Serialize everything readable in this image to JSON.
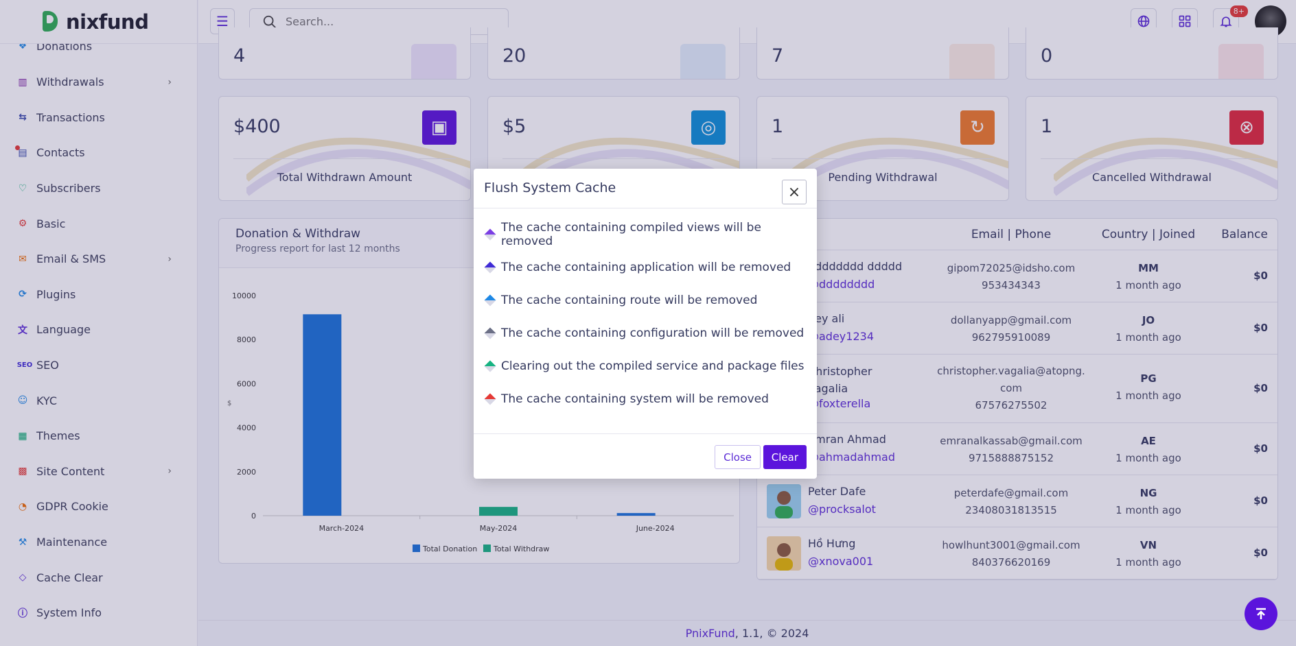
{
  "brand": {
    "name": "nixfund"
  },
  "sidebar": {
    "items": [
      {
        "label": "Donations",
        "icon": "donation-icon",
        "color": "#1e88e5"
      },
      {
        "label": "Withdrawals",
        "icon": "withdraw-icon",
        "color": "#7b1fa2",
        "arrow": true
      },
      {
        "label": "Transactions",
        "icon": "transactions-icon",
        "color": "#3949ab"
      },
      {
        "label": "Contacts",
        "icon": "contacts-icon",
        "color": "#3949ab",
        "dot": true
      },
      {
        "label": "Subscribers",
        "icon": "subscribers-icon",
        "color": "#00a86b"
      },
      {
        "label": "Basic",
        "icon": "gear-icon",
        "color": "#e53935"
      },
      {
        "label": "Email & SMS",
        "icon": "mail-icon",
        "color": "#ef6c00",
        "arrow": true
      },
      {
        "label": "Plugins",
        "icon": "plugin-icon",
        "color": "#1e88e5"
      },
      {
        "label": "Language",
        "icon": "language-icon",
        "color": "#5b2bd6"
      },
      {
        "label": "SEO",
        "icon": "seo-icon",
        "color": "#3f2bd6"
      },
      {
        "label": "KYC",
        "icon": "user-icon",
        "color": "#1e88e5"
      },
      {
        "label": "Themes",
        "icon": "themes-icon",
        "color": "#00a86b"
      },
      {
        "label": "Site Content",
        "icon": "grid-icon",
        "color": "#e53935",
        "arrow": true
      },
      {
        "label": "GDPR Cookie",
        "icon": "cookie-icon",
        "color": "#ef6c00"
      },
      {
        "label": "Maintenance",
        "icon": "wrench-icon",
        "color": "#1e88e5"
      },
      {
        "label": "Cache Clear",
        "icon": "eraser-icon",
        "color": "#5b2bd6"
      },
      {
        "label": "System Info",
        "icon": "info-icon",
        "color": "#5b2bd6"
      }
    ]
  },
  "header": {
    "search_placeholder": "Search...",
    "notification_badge": "8+"
  },
  "stats_top": [
    {
      "value": "4",
      "color": "#ede6fb"
    },
    {
      "value": "20",
      "color": "#e3effc"
    },
    {
      "value": "7",
      "color": "#fdeee4"
    },
    {
      "value": "0",
      "color": "#fde7ea"
    }
  ],
  "stats": [
    {
      "value": "$400",
      "label": "Total Withdrawn Amount",
      "icon": "money-icon",
      "color": "#5b14dc"
    },
    {
      "value": "$5",
      "label": "",
      "icon": "coins-icon",
      "color": "#0c8fd8"
    },
    {
      "value": "1",
      "label": "Pending Withdrawal",
      "icon": "pending-icon",
      "color": "#f07a28"
    },
    {
      "value": "1",
      "label": "Cancelled Withdrawal",
      "icon": "cancel-icon",
      "color": "#e0283c"
    }
  ],
  "chart": {
    "title": "Donation & Withdraw",
    "subtitle": "Progress report for last 12 months"
  },
  "chart_data": {
    "type": "bar",
    "categories": [
      "March-2024",
      "May-2024",
      "June-2024"
    ],
    "series": [
      {
        "name": "Total Donation",
        "color": "#1a73d9",
        "values": [
          9150,
          0,
          120
        ]
      },
      {
        "name": "Total Withdraw",
        "color": "#17b382",
        "values": [
          0,
          400,
          0
        ]
      }
    ],
    "ylabel": "$",
    "yticks": [
      0,
      2000,
      4000,
      6000,
      8000,
      10000
    ],
    "ylim": [
      0,
      10000
    ],
    "legend": "bottom"
  },
  "table": {
    "headers": {
      "email": "Email | Phone",
      "country": "Country | Joined",
      "balance": "Balance"
    },
    "rows": [
      {
        "name": "dddddddd ddddd",
        "handle": "@dddddddd",
        "email": "gipom72025@idsho.com",
        "phone": "953434343",
        "country": "MM",
        "joined": "1 month ago",
        "balance": "$0"
      },
      {
        "name": "dey ali",
        "handle": "@adey1234",
        "email": "dollanyapp@gmail.com",
        "phone": "962795910089",
        "country": "JO",
        "joined": "1 month ago",
        "balance": "$0"
      },
      {
        "name": "Christopher Vagalia",
        "handle": "@foxterella",
        "email": "christopher.vagalia@atopng.com",
        "phone": "67576275502",
        "country": "PG",
        "joined": "1 month ago",
        "balance": "$0"
      },
      {
        "name": "Emran Ahmad",
        "handle": "@ahmadahmad",
        "email": "emranalkassab@gmail.com",
        "phone": "9715888875152",
        "country": "AE",
        "joined": "1 month ago",
        "balance": "$0"
      },
      {
        "name": "Peter Dafe",
        "handle": "@procksalot",
        "email": "peterdafe@gmail.com",
        "phone": "23408031813515",
        "country": "NG",
        "joined": "1 month ago",
        "balance": "$0"
      },
      {
        "name": "Hồ Hưng",
        "handle": "@xnova001",
        "email": "howlhunt3001@gmail.com",
        "phone": "840376620169",
        "country": "VN",
        "joined": "1 month ago",
        "balance": "$0"
      }
    ]
  },
  "footer": {
    "brand": "PnixFund",
    "rest": ", 1.1, © 2024"
  },
  "modal": {
    "title": "Flush System Cache",
    "items": [
      {
        "text": "The cache containing compiled views will be removed",
        "color": "#7b3fe4"
      },
      {
        "text": "The cache containing application will be removed",
        "color": "#3f2bd6"
      },
      {
        "text": "The cache containing route will be removed",
        "color": "#1e88e5"
      },
      {
        "text": "The cache containing configuration will be removed",
        "color": "#6b6f86"
      },
      {
        "text": "Clearing out the compiled service and package files",
        "color": "#17b382"
      },
      {
        "text": "The cache containing system will be removed",
        "color": "#e53935"
      }
    ],
    "close_label": "Close",
    "clear_label": "Clear"
  }
}
